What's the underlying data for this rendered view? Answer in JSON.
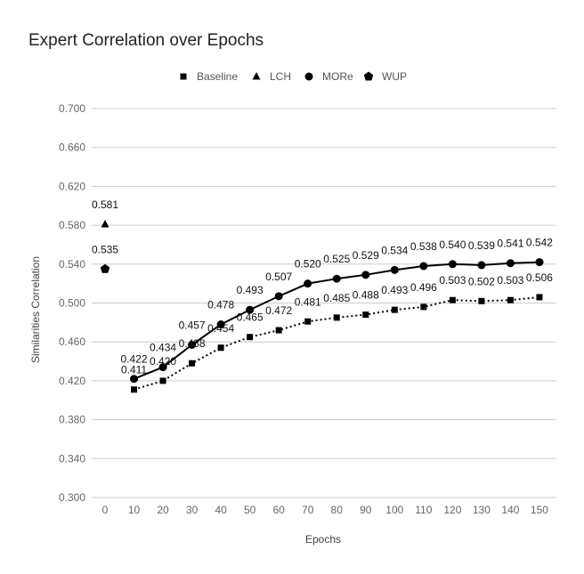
{
  "chart_data": {
    "type": "line",
    "title": "Expert Correlation over Epochs",
    "xlabel": "Epochs",
    "ylabel": "Similarities Correlation",
    "ylim": [
      0.3,
      0.7
    ],
    "y_ticks": [
      "0.300",
      "0.340",
      "0.380",
      "0.420",
      "0.460",
      "0.500",
      "0.540",
      "0.580",
      "0.620",
      "0.660",
      "0.700"
    ],
    "x_ticks": [
      "0",
      "10",
      "20",
      "30",
      "40",
      "50",
      "60",
      "70",
      "80",
      "90",
      "100",
      "110",
      "120",
      "130",
      "140",
      "150"
    ],
    "grid": true,
    "legend_position": "top",
    "series": [
      {
        "name": "Baseline",
        "marker": "square",
        "line": "dotted",
        "x": [
          10,
          20,
          30,
          40,
          50,
          60,
          70,
          80,
          90,
          100,
          110,
          120,
          130,
          140,
          150
        ],
        "values": [
          0.411,
          0.42,
          0.438,
          0.454,
          0.465,
          0.472,
          0.481,
          0.485,
          0.488,
          0.493,
          0.496,
          0.503,
          0.502,
          0.503,
          0.506
        ],
        "labels": [
          "0.411",
          "0.420",
          "0.438",
          "0.454",
          "0.465",
          "0.472",
          "0.481",
          "0.485",
          "0.488",
          "0.493",
          "0.496",
          "0.503",
          "0.502",
          "0.503",
          "0.506"
        ]
      },
      {
        "name": "LCH",
        "marker": "triangle",
        "line": "none",
        "x": [
          0
        ],
        "values": [
          0.581
        ],
        "labels": [
          "0.581"
        ]
      },
      {
        "name": "MORe",
        "marker": "circle",
        "line": "solid",
        "x": [
          10,
          20,
          30,
          40,
          50,
          60,
          70,
          80,
          90,
          100,
          110,
          120,
          130,
          140,
          150
        ],
        "values": [
          0.422,
          0.434,
          0.457,
          0.478,
          0.493,
          0.507,
          0.52,
          0.525,
          0.529,
          0.534,
          0.538,
          0.54,
          0.539,
          0.541,
          0.542
        ],
        "labels": [
          "0.422",
          "0.434",
          "0.457",
          "0.478",
          "0.493",
          "0.507",
          "0.520",
          "0.525",
          "0.529",
          "0.534",
          "0.538",
          "0.540",
          "0.539",
          "0.541",
          "0.542"
        ]
      },
      {
        "name": "WUP",
        "marker": "pentagon",
        "line": "none",
        "x": [
          0
        ],
        "values": [
          0.535
        ],
        "labels": [
          "0.535"
        ]
      }
    ],
    "colors": {
      "series": "#000000",
      "grid": "#cccccc",
      "tick_text": "#666666"
    }
  }
}
